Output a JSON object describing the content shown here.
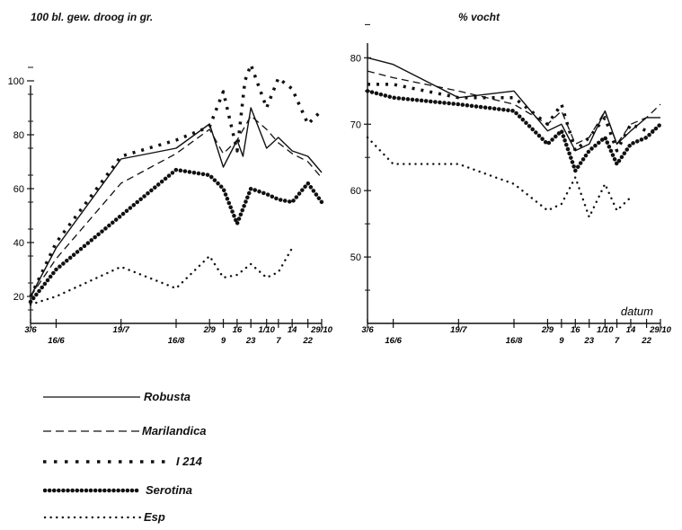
{
  "figure": {
    "left_title": "100 bl. gew. droog in gr.",
    "right_title": "% vocht"
  },
  "legend": [
    {
      "label": "Robusta",
      "style": "solid"
    },
    {
      "label": "Marilandica",
      "style": "dashed"
    },
    {
      "label": "I 214",
      "style": "cross"
    },
    {
      "label": "Serotina",
      "style": "circle"
    },
    {
      "label": "Esp",
      "style": "dotted"
    }
  ],
  "chart_data": [
    {
      "type": "line",
      "title": "100 bl. gew. droog in gr.",
      "xlabel": "",
      "ylabel": "",
      "ylim": [
        10,
        110
      ],
      "y_ticks": [
        20,
        40,
        60,
        80,
        100
      ],
      "x_tick_labels": [
        "3/6",
        "16/6",
        "19/7",
        "16/8",
        "2/9",
        "9",
        "16",
        "23",
        "1/10",
        "7",
        "14",
        "22",
        "29/10"
      ],
      "grid": false,
      "series": [
        {
          "name": "Robusta",
          "style": "solid",
          "x": [
            "3/6",
            "16/6",
            "19/7",
            "16/8",
            "2/9",
            "9",
            "16",
            "19",
            "23",
            "1/10",
            "7",
            "14",
            "22",
            "29/10"
          ],
          "y": [
            20,
            38,
            71,
            75,
            84,
            68,
            78,
            72,
            90,
            75,
            79,
            74,
            72,
            66
          ]
        },
        {
          "name": "Marilandica",
          "style": "dashed",
          "x": [
            "3/6",
            "16/6",
            "19/7",
            "16/8",
            "2/9",
            "9",
            "16",
            "23",
            "1/10",
            "7",
            "14",
            "22",
            "29/10"
          ],
          "y": [
            20,
            34,
            62,
            73,
            82,
            73,
            78,
            87,
            82,
            77,
            73,
            70,
            64
          ]
        },
        {
          "name": "I 214",
          "style": "cross",
          "x": [
            "3/6",
            "16/6",
            "19/7",
            "16/8",
            "2/9",
            "9",
            "16",
            "20",
            "23",
            "1/10",
            "7",
            "14",
            "22",
            "29/10"
          ],
          "y": [
            20,
            40,
            72,
            78,
            83,
            96,
            74,
            100,
            106,
            90,
            101,
            97,
            84,
            89
          ]
        },
        {
          "name": "Serotina",
          "style": "circle",
          "x": [
            "3/6",
            "16/6",
            "19/7",
            "16/8",
            "2/9",
            "9",
            "16",
            "23",
            "1/10",
            "7",
            "14",
            "22",
            "29/10"
          ],
          "y": [
            18,
            30,
            50,
            67,
            65,
            60,
            47,
            60,
            58,
            56,
            55,
            62,
            55
          ]
        },
        {
          "name": "Esp",
          "style": "dotted",
          "x": [
            "3/6",
            "16/6",
            "19/7",
            "16/8",
            "2/9",
            "9",
            "16",
            "23",
            "1/10",
            "7",
            "14"
          ],
          "y": [
            17,
            20,
            31,
            23,
            35,
            27,
            28,
            32,
            27,
            29,
            38
          ]
        }
      ]
    },
    {
      "type": "line",
      "title": "% vocht",
      "xlabel": "datum",
      "ylabel": "",
      "ylim": [
        40,
        86
      ],
      "y_ticks": [
        50,
        60,
        70,
        80
      ],
      "x_tick_labels": [
        "3/6",
        "16/6",
        "19/7",
        "16/8",
        "2/9",
        "9",
        "16",
        "23",
        "1/10",
        "7",
        "14",
        "22",
        "29/10"
      ],
      "grid": false,
      "series": [
        {
          "name": "Robusta",
          "style": "solid",
          "x": [
            "3/6",
            "16/6",
            "19/7",
            "16/8",
            "2/9",
            "9",
            "16",
            "23",
            "1/10",
            "7",
            "14",
            "22",
            "29/10"
          ],
          "y": [
            80,
            79,
            74,
            75,
            69,
            70,
            66,
            67,
            72,
            67,
            69,
            71,
            71
          ]
        },
        {
          "name": "Marilandica",
          "style": "dashed",
          "x": [
            "3/6",
            "16/6",
            "19/7",
            "16/8",
            "2/9",
            "9",
            "16",
            "23",
            "1/10",
            "7",
            "14",
            "22",
            "29/10"
          ],
          "y": [
            78,
            77,
            75,
            73,
            70,
            72,
            67,
            68,
            72,
            67,
            70,
            71,
            73
          ]
        },
        {
          "name": "I 214",
          "style": "cross",
          "x": [
            "3/6",
            "16/6",
            "19/7",
            "16/8",
            "2/9",
            "9",
            "16",
            "23",
            "1/10",
            "7",
            "14",
            "22",
            "29/10"
          ],
          "y": [
            76,
            76,
            74,
            74,
            70,
            73,
            66,
            68,
            71,
            66,
            70,
            69,
            69
          ]
        },
        {
          "name": "Serotina",
          "style": "circle",
          "x": [
            "3/6",
            "16/6",
            "19/7",
            "16/8",
            "2/9",
            "9",
            "16",
            "23",
            "1/10",
            "7",
            "14",
            "22",
            "29/10"
          ],
          "y": [
            75,
            74,
            73,
            72,
            67,
            69,
            63,
            66,
            68,
            64,
            67,
            68,
            70
          ]
        },
        {
          "name": "Esp",
          "style": "dotted",
          "x": [
            "3/6",
            "16/6",
            "19/7",
            "16/8",
            "2/9",
            "9",
            "16",
            "23",
            "1/10",
            "7",
            "14"
          ],
          "y": [
            68,
            64,
            64,
            61,
            57,
            58,
            62,
            56,
            61,
            57,
            59
          ]
        }
      ]
    }
  ]
}
